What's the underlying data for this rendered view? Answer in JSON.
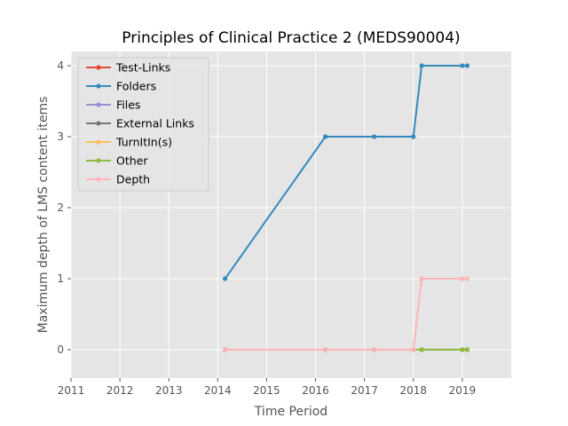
{
  "chart_data": {
    "type": "line",
    "title": "Principles of Clinical Practice 2 (MEDS90004)",
    "xlabel": "Time Period",
    "ylabel": "Maximum depth of LMS content items",
    "xlim": [
      2011,
      2020
    ],
    "ylim": [
      -0.4,
      4.2
    ],
    "xticks": [
      2011,
      2012,
      2013,
      2014,
      2015,
      2016,
      2017,
      2018,
      2019
    ],
    "yticks": [
      0,
      1,
      2,
      3,
      4
    ],
    "grid": true,
    "legend_position": "upper-left",
    "x": [
      2014.15,
      2016.2,
      2017.2,
      2018.0,
      2018.17,
      2019.0,
      2019.1
    ],
    "series": [
      {
        "name": "Test-Links",
        "color": "#E24A33",
        "values": [
          0,
          0,
          0,
          0,
          0,
          0,
          0
        ]
      },
      {
        "name": "Folders",
        "color": "#348ABD",
        "values": [
          1,
          3,
          3,
          3,
          4,
          4,
          4
        ]
      },
      {
        "name": "Files",
        "color": "#988ED5",
        "values": [
          0,
          0,
          0,
          0,
          0,
          0,
          0
        ]
      },
      {
        "name": "External Links",
        "color": "#777777",
        "values": [
          0,
          0,
          0,
          0,
          0,
          0,
          0
        ]
      },
      {
        "name": "TurnItIn(s)",
        "color": "#FBC15E",
        "values": [
          0,
          0,
          0,
          0,
          0,
          0,
          0
        ]
      },
      {
        "name": "Other",
        "color": "#8EBA42",
        "values": [
          0,
          0,
          0,
          0,
          0,
          0,
          0
        ]
      },
      {
        "name": "Depth",
        "color": "#FFB5B8",
        "values": [
          0,
          0,
          0,
          0,
          1,
          1,
          1
        ]
      }
    ]
  }
}
